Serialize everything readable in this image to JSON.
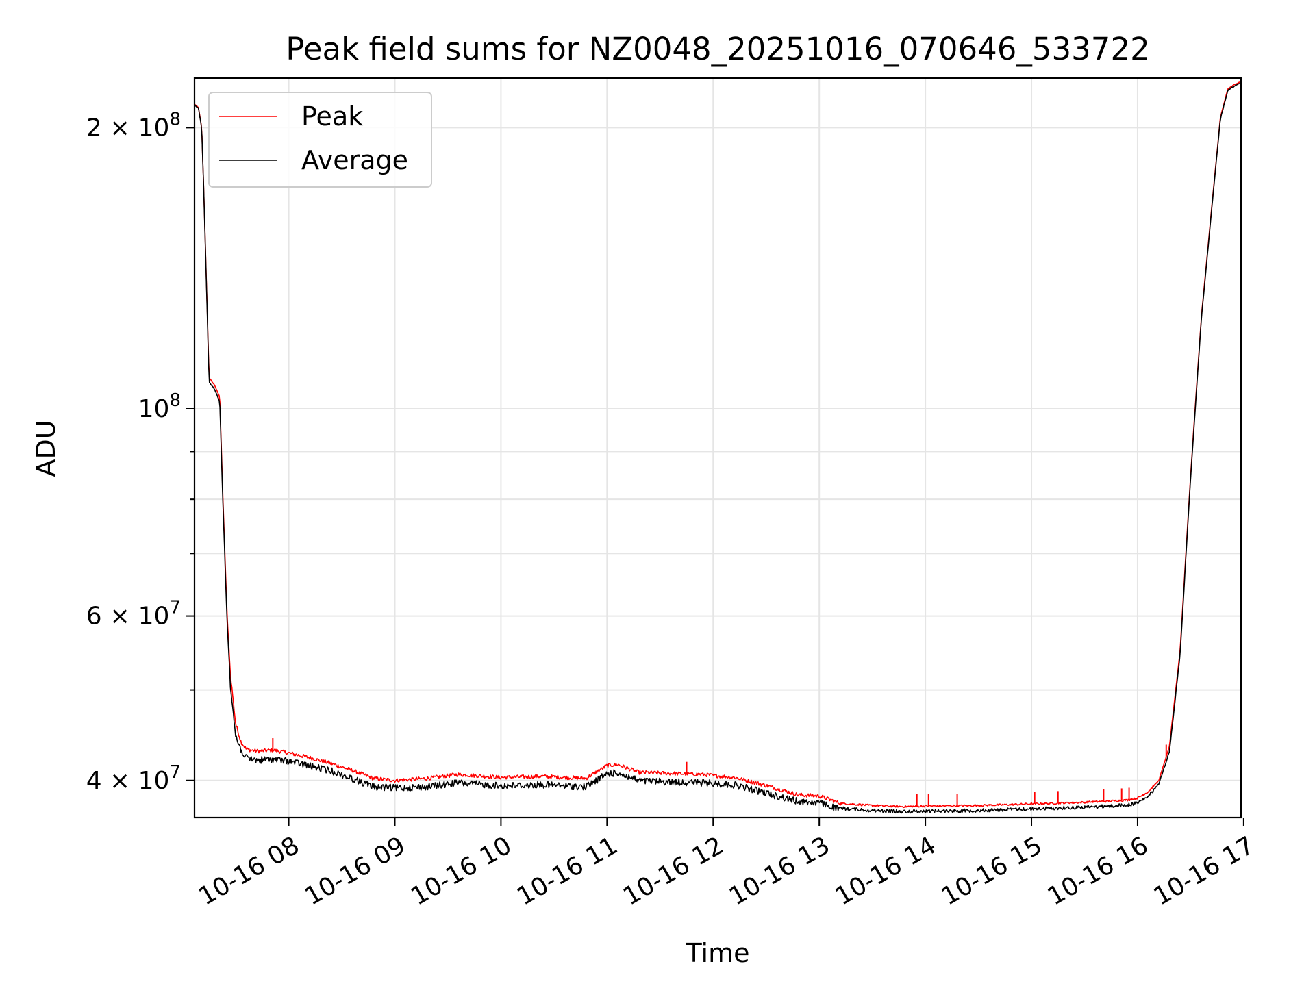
{
  "chart_data": {
    "type": "line",
    "title": "Peak field sums for NZ0048_20251016_070646_533722",
    "xlabel": "Time",
    "ylabel": "ADU",
    "yscale": "log",
    "grid": true,
    "legend_position": "top-left",
    "xlim_hours": [
      7.112,
      16.975
    ],
    "ylim": [
      36500000,
      226000000
    ],
    "x_tick_labels": [
      "10-16 08",
      "10-16 09",
      "10-16 10",
      "10-16 11",
      "10-16 12",
      "10-16 13",
      "10-16 14",
      "10-16 15",
      "10-16 16",
      "10-16 17"
    ],
    "x_tick_values_hours": [
      8,
      9,
      10,
      11,
      12,
      13,
      14,
      15,
      16,
      17
    ],
    "y_major_ticks": [
      {
        "value": 40000000,
        "label_base": "4 × 10",
        "label_exp": "7"
      },
      {
        "value": 60000000,
        "label_base": "6 × 10",
        "label_exp": "7"
      },
      {
        "value": 100000000,
        "label_base": "10",
        "label_exp": "8"
      },
      {
        "value": 200000000,
        "label_base": "2 × 10",
        "label_exp": "8"
      }
    ],
    "y_minor_ticks": [
      50000000,
      70000000,
      80000000,
      90000000
    ],
    "series": [
      {
        "name": "Peak",
        "color": "#ff0000",
        "x_hours": [
          7.112,
          7.15,
          7.18,
          7.2,
          7.25,
          7.3,
          7.35,
          7.38,
          7.42,
          7.45,
          7.5,
          7.55,
          7.6,
          7.7,
          7.85,
          8.0,
          8.2,
          8.4,
          8.6,
          8.8,
          9.0,
          9.3,
          9.6,
          10.0,
          10.4,
          10.8,
          11.0,
          11.1,
          11.3,
          11.6,
          11.9,
          12.2,
          12.5,
          12.8,
          13.0,
          13.2,
          13.5,
          13.8,
          14.0,
          14.5,
          15.0,
          15.5,
          15.9,
          16.0,
          16.1,
          16.2,
          16.3,
          16.4,
          16.5,
          16.6,
          16.7,
          16.78,
          16.85,
          16.9,
          16.975
        ],
        "values": [
          212000000,
          210000000,
          200000000,
          170000000,
          108000000,
          106000000,
          103000000,
          80000000,
          60000000,
          52000000,
          46000000,
          44000000,
          43200000,
          43000000,
          43100000,
          42800000,
          42300000,
          41700000,
          41000000,
          40200000,
          40000000,
          40200000,
          40600000,
          40300000,
          40400000,
          40200000,
          41500000,
          41600000,
          40800000,
          40700000,
          40600000,
          40300000,
          39500000,
          38600000,
          38500000,
          37800000,
          37600000,
          37500000,
          37550000,
          37600000,
          37750000,
          37900000,
          38100000,
          38300000,
          38900000,
          40000000,
          43500000,
          55000000,
          85000000,
          125000000,
          165000000,
          205000000,
          220000000,
          222000000,
          224000000
        ],
        "spikes_hours": [
          7.85,
          11.75,
          13.92,
          14.03,
          14.3,
          15.03,
          15.25,
          15.68,
          15.85,
          15.92,
          16.27
        ]
      },
      {
        "name": "Average",
        "color": "#000000",
        "x_hours": [
          7.112,
          7.15,
          7.18,
          7.2,
          7.25,
          7.3,
          7.35,
          7.38,
          7.42,
          7.45,
          7.5,
          7.55,
          7.6,
          7.7,
          7.85,
          8.0,
          8.2,
          8.4,
          8.6,
          8.8,
          9.0,
          9.3,
          9.6,
          10.0,
          10.4,
          10.8,
          11.0,
          11.1,
          11.3,
          11.6,
          11.9,
          12.2,
          12.5,
          12.8,
          13.0,
          13.2,
          13.5,
          13.8,
          14.0,
          14.5,
          15.0,
          15.5,
          15.9,
          16.0,
          16.1,
          16.2,
          16.3,
          16.4,
          16.5,
          16.6,
          16.7,
          16.78,
          16.85,
          16.9,
          16.975
        ],
        "values": [
          212000000,
          210000000,
          200000000,
          170000000,
          107000000,
          105000000,
          102000000,
          79000000,
          59000000,
          51000000,
          45000000,
          43500000,
          42600000,
          42400000,
          42500000,
          42300000,
          41800000,
          41300000,
          40500000,
          39700000,
          39600000,
          39700000,
          40100000,
          39800000,
          39900000,
          39700000,
          41000000,
          41100000,
          40300000,
          40200000,
          40100000,
          39900000,
          39100000,
          38300000,
          38200000,
          37500000,
          37300000,
          37200000,
          37250000,
          37300000,
          37450000,
          37600000,
          37800000,
          38000000,
          38600000,
          39700000,
          43000000,
          54500000,
          84500000,
          124500000,
          164500000,
          204500000,
          219500000,
          221500000,
          224000000
        ]
      }
    ]
  }
}
